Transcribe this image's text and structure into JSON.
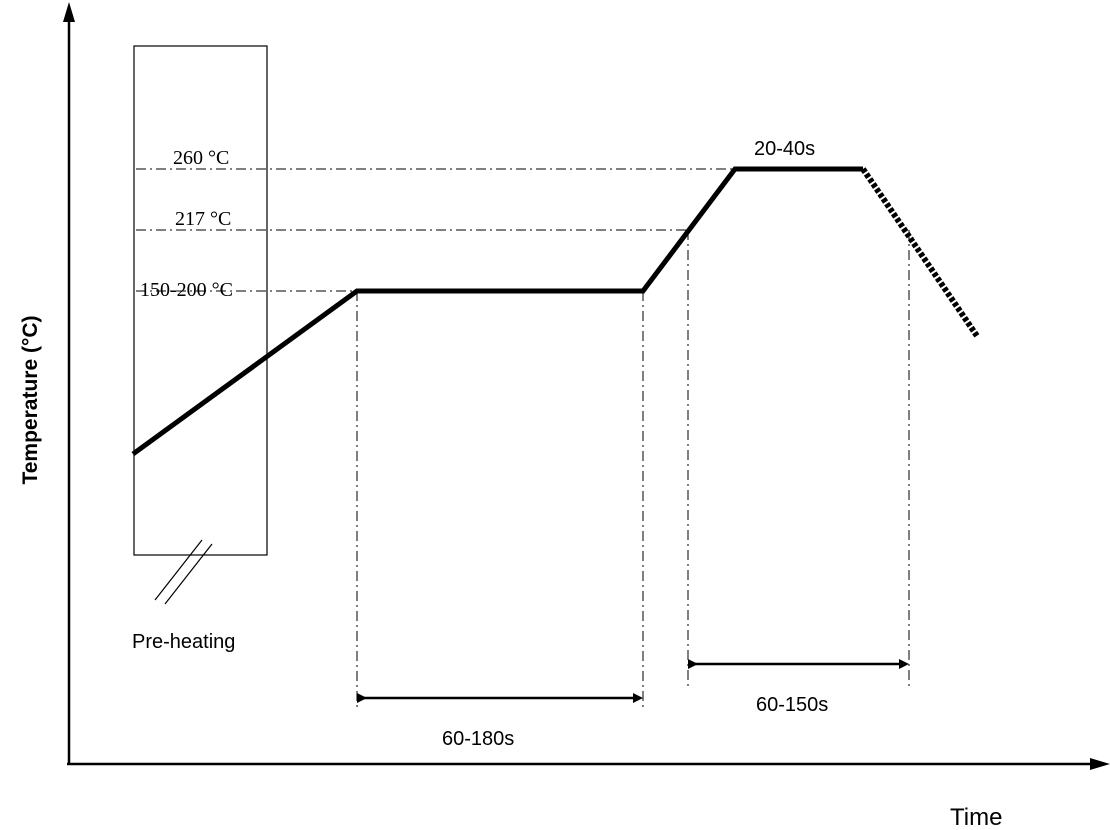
{
  "axes": {
    "y_label": "Temperature (°C)",
    "x_label": "Time"
  },
  "temperatures": {
    "peak": "260 °C",
    "liquidus": "217 °C",
    "soak": "150-200 °C"
  },
  "durations": {
    "peak_hold": "20-40s",
    "soak": "60-180s",
    "above_liquidus": "60-150s"
  },
  "zones": {
    "preheat": "Pre-heating"
  }
}
